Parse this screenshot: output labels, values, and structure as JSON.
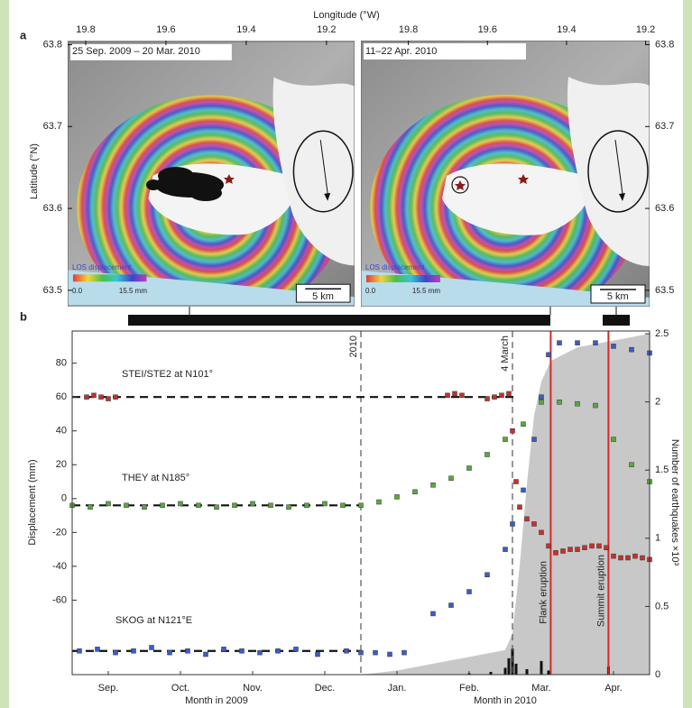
{
  "panel_a": {
    "label": "a",
    "x_label": "Longitude (°W)",
    "y_label": "Latitude (°N)",
    "ylim": [
      63.48,
      63.805
    ],
    "yticks": [
      63.8,
      63.7,
      63.6,
      63.5
    ],
    "maps": [
      {
        "title": "25 Sep. 2009 – 20 Mar. 2010",
        "xlim": [
          19.845,
          19.13
        ],
        "xticks": [
          19.8,
          19.6,
          19.4,
          19.2
        ],
        "legend_title": "LOS displacement",
        "legend_min": "0.0",
        "legend_max": "15.5 mm",
        "scale": "5 km"
      },
      {
        "title": "11–22 Apr. 2010",
        "xlim": [
          19.92,
          19.19
        ],
        "xticks": [
          19.8,
          19.6,
          19.4,
          19.2
        ],
        "legend_title": "LOS displacement",
        "legend_min": "0.0",
        "legend_max": "15.5 mm",
        "scale": "5 km"
      }
    ]
  },
  "chart_data": {
    "type": "scatter",
    "panel_label": "b",
    "y_label": "Displacement (mm)",
    "y2_label": "Number of earthquakes ×10³",
    "x_group_labels": [
      "Month in 2009",
      "Month in 2010"
    ],
    "xlim": [
      9,
      17
    ],
    "xticks": [
      {
        "value": 9.5,
        "label": "Sep."
      },
      {
        "value": 10.5,
        "label": "Oct."
      },
      {
        "value": 11.5,
        "label": "Nov."
      },
      {
        "value": 12.5,
        "label": "Dec."
      },
      {
        "value": 13.5,
        "label": "Jan."
      },
      {
        "value": 14.5,
        "label": "Feb."
      },
      {
        "value": 15.5,
        "label": "Mar."
      },
      {
        "value": 16.5,
        "label": "Apr."
      }
    ],
    "ylim": [
      -104,
      99
    ],
    "yticks": [
      -60,
      -40,
      -20,
      0,
      20,
      40,
      60,
      80
    ],
    "y2lim": [
      0,
      2.52
    ],
    "y2ticks": [
      0,
      0.5,
      1,
      1.5,
      2,
      2.5
    ],
    "annotations": [
      {
        "text": "2010",
        "x": 13,
        "style": "dashed",
        "color": "#555555"
      },
      {
        "text": "4 March",
        "x": 15.1,
        "style": "dashed",
        "color": "#555555"
      },
      {
        "text": "Flank eruption",
        "x": 15.63,
        "style": "solid",
        "color": "#d42a2a"
      },
      {
        "text": "Summit eruption",
        "x": 16.43,
        "style": "solid",
        "color": "#d42a2a"
      }
    ],
    "series": [
      {
        "type": "area",
        "axis": "y2",
        "color": "#c8c8c8",
        "x": [
          13.0,
          13.5,
          14,
          14.5,
          15,
          15.1,
          15.2,
          15.3,
          15.4,
          15.5,
          15.63,
          16,
          16.5,
          17
        ],
        "values": [
          0,
          0.03,
          0.08,
          0.13,
          0.18,
          0.3,
          0.8,
          1.4,
          1.9,
          2.15,
          2.3,
          2.4,
          2.45,
          2.5
        ]
      },
      {
        "type": "bar",
        "axis": "y2",
        "color": "#111111",
        "x": [
          14.5,
          14.8,
          15.0,
          15.05,
          15.1,
          15.15,
          15.3,
          15.5,
          15.6,
          16.43
        ],
        "values": [
          0.01,
          0.02,
          0.05,
          0.12,
          0.19,
          0.08,
          0.04,
          0.1,
          0.03,
          0.06
        ]
      },
      {
        "name": "STEI/STE2 at N101°",
        "color": "#c8302c",
        "baseline": 60,
        "x": [
          9.2,
          9.3,
          9.4,
          9.5,
          9.6,
          14.2,
          14.3,
          14.4,
          14.75,
          14.85,
          14.95,
          15.05,
          15.1,
          15.15,
          15.2,
          15.3,
          15.4,
          15.5,
          15.6,
          15.7,
          15.8,
          15.9,
          16.0,
          16.1,
          16.2,
          16.3,
          16.4,
          16.5,
          16.6,
          16.7,
          16.8,
          16.9,
          17.0
        ],
        "values": [
          60,
          61,
          60,
          59,
          60,
          61,
          62,
          61,
          59,
          60,
          61,
          62,
          40,
          10,
          -5,
          -12,
          -15,
          -20,
          -28,
          -32,
          -31,
          -30,
          -30,
          -29,
          -28,
          -28,
          -29,
          -34,
          -35,
          -35,
          -34,
          -35,
          -36
        ]
      },
      {
        "name": "THEY at N185°",
        "color": "#5aa83c",
        "baseline": -4,
        "x": [
          9,
          9.25,
          9.5,
          9.75,
          10,
          10.25,
          10.5,
          10.75,
          11,
          11.25,
          11.5,
          11.75,
          12,
          12.25,
          12.5,
          12.75,
          13,
          13.25,
          13.5,
          13.75,
          14,
          14.25,
          14.5,
          14.75,
          15,
          15.25,
          15.5,
          15.75,
          16,
          16.25,
          16.5,
          16.75,
          17
        ],
        "values": [
          -4,
          -5,
          -3,
          -4,
          -5,
          -4,
          -3,
          -4,
          -5,
          -4,
          -3,
          -4,
          -5,
          -4,
          -3,
          -4,
          -4,
          -2,
          1,
          4,
          8,
          12,
          18,
          26,
          35,
          44,
          57,
          57,
          56,
          55,
          35,
          20,
          10
        ]
      },
      {
        "name": "SKOG at N121°E",
        "color": "#3c5cc8",
        "baseline": -90,
        "x": [
          9.1,
          9.35,
          9.6,
          9.85,
          10.1,
          10.35,
          10.6,
          10.85,
          11.1,
          11.35,
          11.6,
          11.85,
          12.1,
          12.4,
          12.8,
          13.0,
          13.2,
          13.4,
          13.6,
          14.0,
          14.25,
          14.5,
          14.75,
          15.0,
          15.1,
          15.25,
          15.4,
          15.5,
          15.6,
          15.75,
          16,
          16.25,
          16.5,
          16.75,
          17
        ],
        "values": [
          -90,
          -89,
          -91,
          -90,
          -88,
          -91,
          -90,
          -92,
          -89,
          -90,
          -91,
          -90,
          -89,
          -92,
          -90,
          -91,
          -91,
          -92,
          -91,
          -68,
          -63,
          -55,
          -45,
          -30,
          -15,
          5,
          35,
          60,
          85,
          92,
          92,
          92,
          90,
          88,
          86
        ]
      }
    ]
  }
}
